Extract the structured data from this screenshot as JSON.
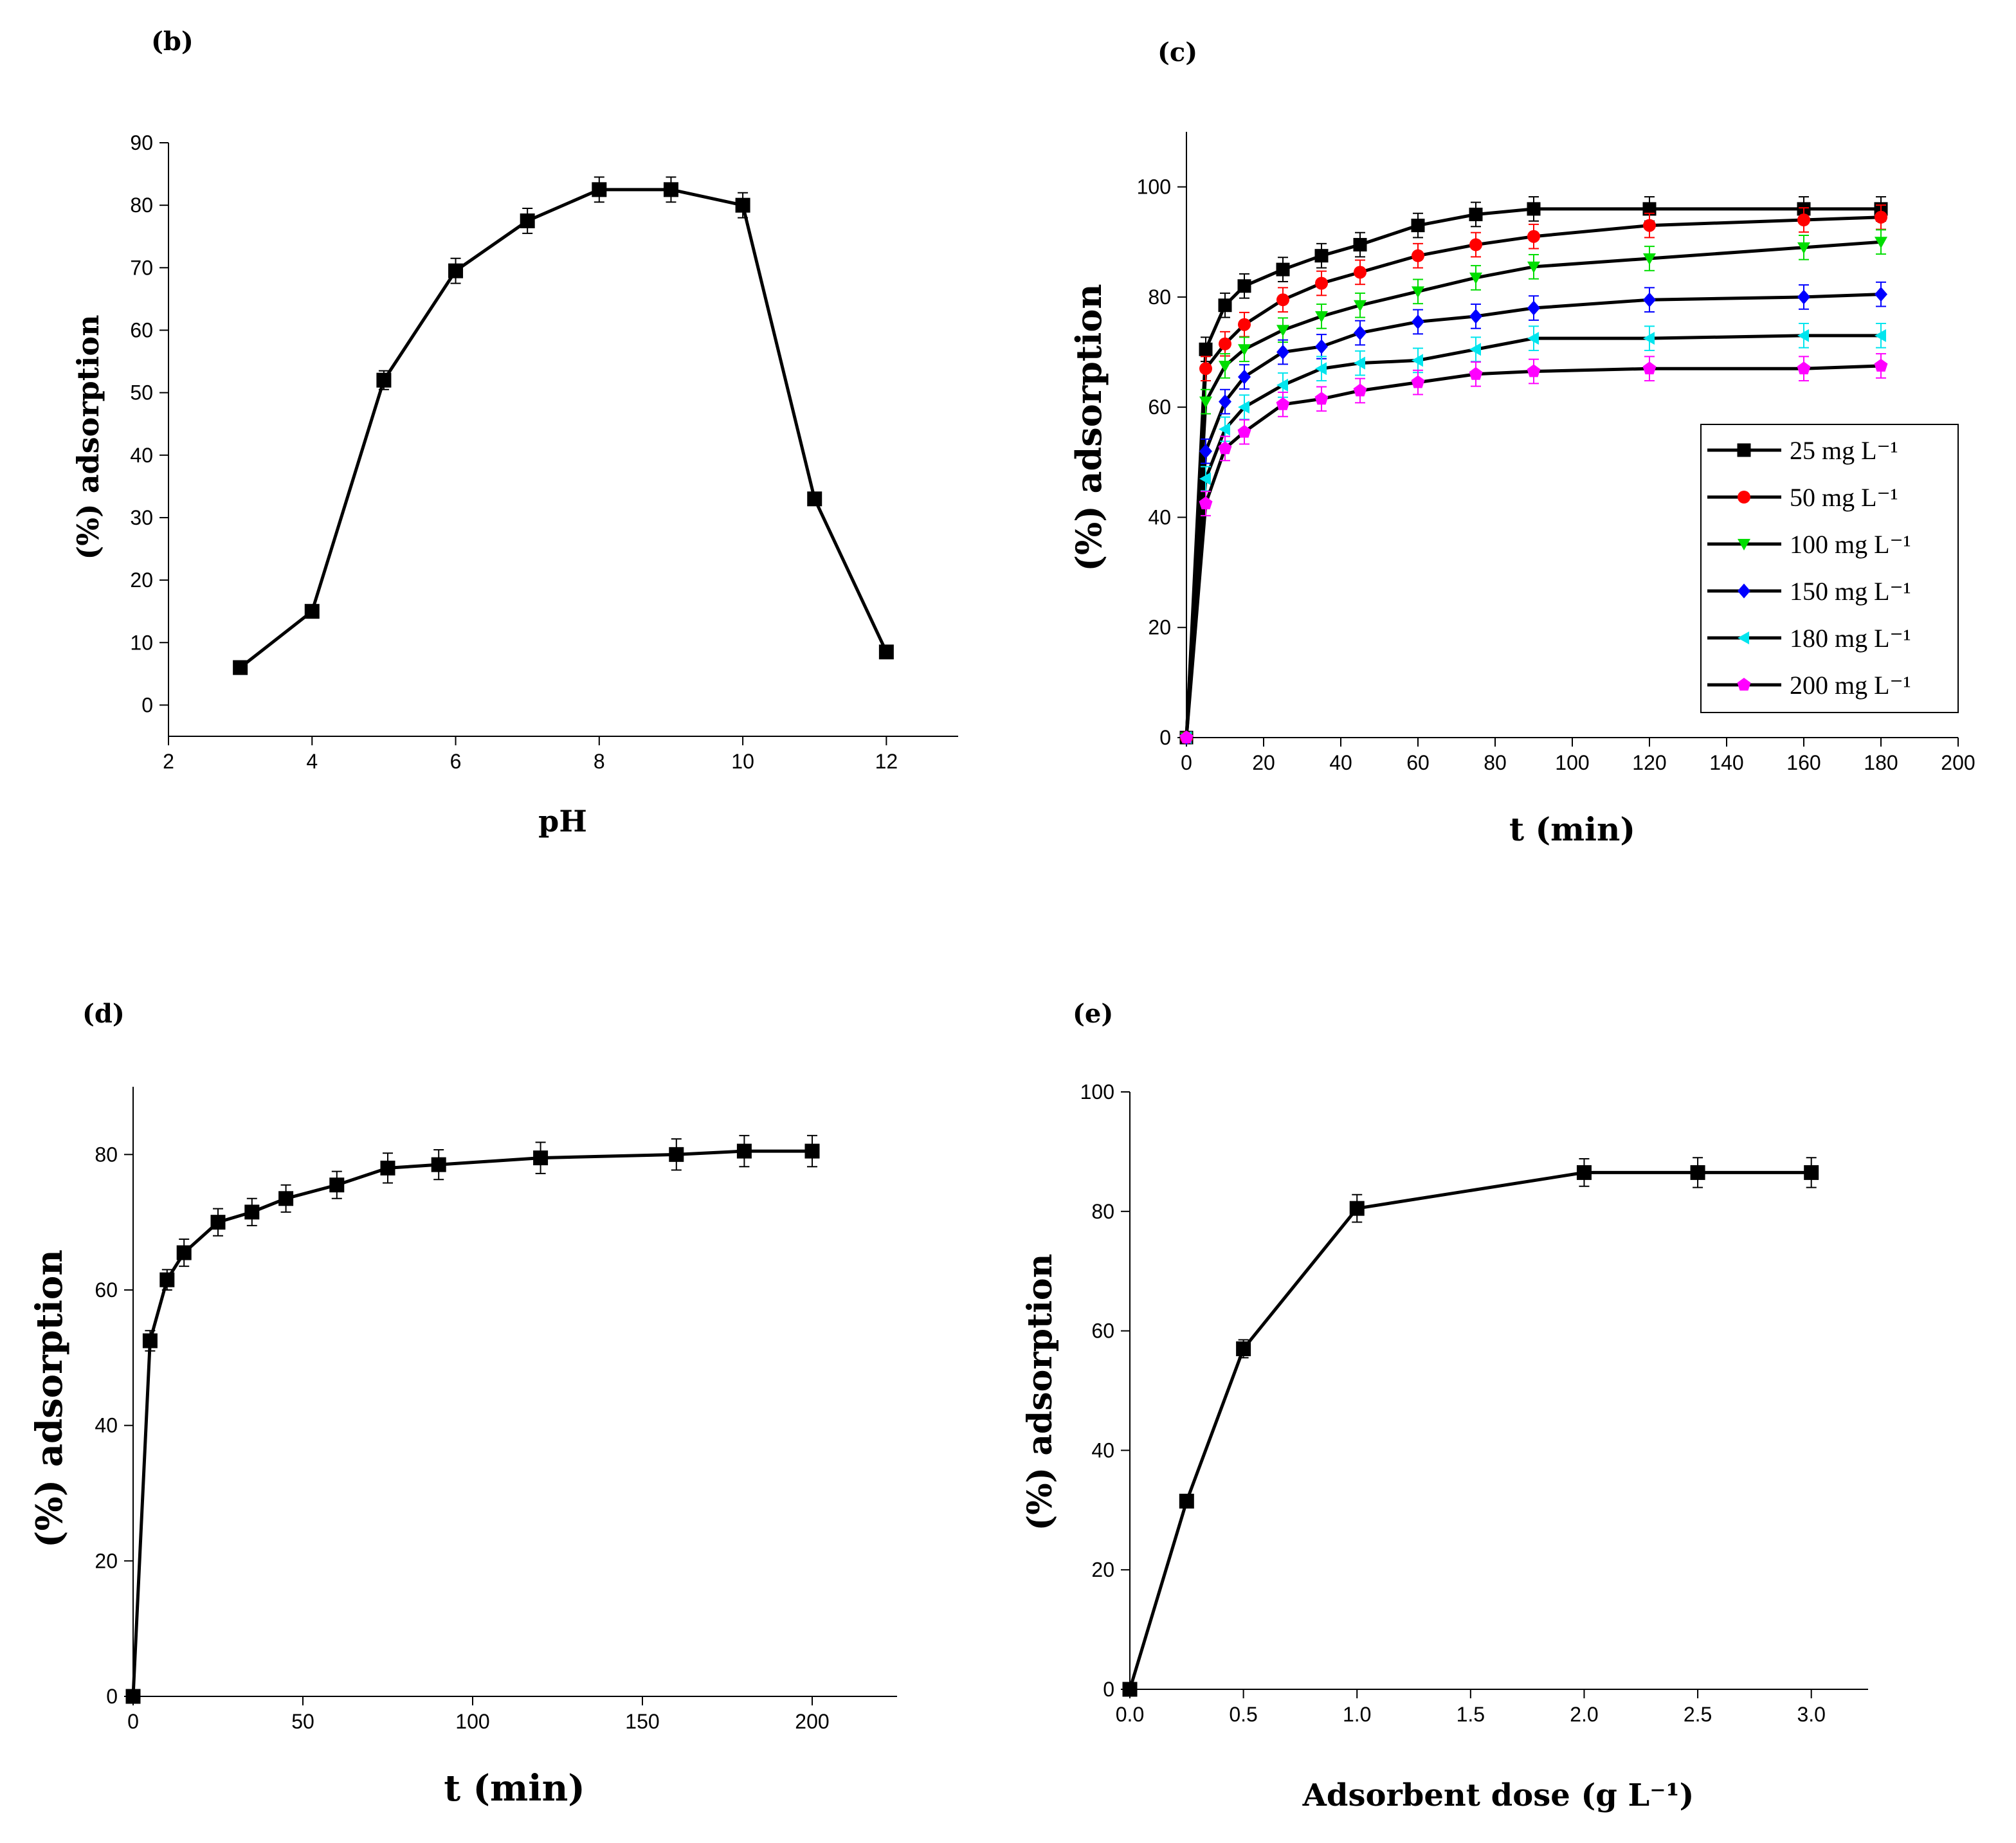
{
  "chart_data": [
    {
      "panel": "(b)",
      "type": "line",
      "xlabel": "pH",
      "ylabel": "(%) adsorption",
      "xlim": [
        2,
        13
      ],
      "ylim": [
        -5,
        90
      ],
      "xticks": [
        2,
        4,
        6,
        8,
        10,
        12
      ],
      "yticks": [
        0,
        10,
        20,
        30,
        40,
        50,
        60,
        70,
        80,
        90
      ],
      "series": [
        {
          "name": "pH",
          "color": "#000000",
          "marker": "square",
          "x": [
            3,
            4,
            5,
            6,
            7,
            8,
            9,
            10,
            11,
            12
          ],
          "y": [
            6,
            15,
            52,
            69.5,
            77.5,
            82.5,
            82.5,
            80,
            33,
            8.5
          ],
          "err": [
            0,
            0,
            1.5,
            2,
            2,
            2,
            2,
            2,
            0,
            0
          ]
        }
      ]
    },
    {
      "panel": "(c)",
      "type": "line",
      "xlabel": "t (min)",
      "ylabel": "(%) adsorption",
      "xlim": [
        0,
        200
      ],
      "ylim": [
        0,
        110
      ],
      "xticks": [
        0,
        20,
        40,
        60,
        80,
        100,
        120,
        140,
        160,
        180,
        200
      ],
      "yticks": [
        0,
        20,
        40,
        60,
        80,
        100
      ],
      "legend": "right",
      "series": [
        {
          "name": "25 mg L⁻¹",
          "color": "#000000",
          "marker": "square",
          "x": [
            0,
            5,
            10,
            15,
            25,
            35,
            45,
            60,
            75,
            90,
            120,
            160,
            180
          ],
          "y": [
            0,
            70.5,
            78.5,
            82,
            85,
            87.5,
            89.5,
            93,
            95,
            96,
            96,
            96,
            96
          ]
        },
        {
          "name": "50 mg L⁻¹",
          "color": "#ff0000",
          "marker": "circle",
          "x": [
            0,
            5,
            10,
            15,
            25,
            35,
            45,
            60,
            75,
            90,
            120,
            160,
            180
          ],
          "y": [
            0,
            67,
            71.5,
            75,
            79.5,
            82.5,
            84.5,
            87.5,
            89.5,
            91,
            93,
            94,
            94.5
          ]
        },
        {
          "name": "100 mg L⁻¹",
          "color": "#00dd00",
          "marker": "triangle-down",
          "x": [
            0,
            5,
            10,
            15,
            25,
            35,
            45,
            60,
            75,
            90,
            120,
            160,
            180
          ],
          "y": [
            0,
            61,
            67.5,
            70.5,
            74,
            76.5,
            78.5,
            81,
            83.5,
            85.5,
            87,
            89,
            90
          ]
        },
        {
          "name": "150 mg L⁻¹",
          "color": "#0000ff",
          "marker": "diamond",
          "x": [
            0,
            5,
            10,
            15,
            25,
            35,
            45,
            60,
            75,
            90,
            120,
            160,
            180
          ],
          "y": [
            0,
            52,
            61,
            65.5,
            70,
            71,
            73.5,
            75.5,
            76.5,
            78,
            79.5,
            80,
            80.5
          ]
        },
        {
          "name": "180 mg L⁻¹",
          "color": "#00e5ee",
          "marker": "triangle-left",
          "x": [
            0,
            5,
            10,
            15,
            25,
            35,
            45,
            60,
            75,
            90,
            120,
            160,
            180
          ],
          "y": [
            0,
            47,
            56,
            60,
            64,
            67,
            68,
            68.5,
            70.5,
            72.5,
            72.5,
            73,
            73
          ]
        },
        {
          "name": "200 mg L⁻¹",
          "color": "#ff00ff",
          "marker": "pentagon",
          "x": [
            0,
            5,
            10,
            15,
            25,
            35,
            45,
            60,
            75,
            90,
            120,
            160,
            180
          ],
          "y": [
            0,
            42.5,
            52.5,
            55.5,
            60.5,
            61.5,
            63,
            64.5,
            66,
            66.5,
            67,
            67,
            67.5
          ]
        }
      ]
    },
    {
      "panel": "(d)",
      "type": "line",
      "xlabel": "t (min)",
      "ylabel": "(%) adsorption",
      "xlim": [
        0,
        225
      ],
      "ylim": [
        0,
        90
      ],
      "xticks": [
        0,
        50,
        100,
        150,
        200
      ],
      "yticks": [
        0,
        20,
        40,
        60,
        80
      ],
      "series": [
        {
          "name": "t",
          "color": "#000000",
          "marker": "square",
          "x": [
            0,
            5,
            10,
            15,
            25,
            35,
            45,
            60,
            75,
            90,
            120,
            160,
            180,
            200
          ],
          "y": [
            0,
            52.5,
            61.5,
            65.5,
            70,
            71.5,
            73.5,
            75.5,
            78,
            78.5,
            79.5,
            80,
            80.5,
            80.5
          ],
          "err": [
            0,
            1.5,
            1.5,
            2,
            2,
            2,
            2,
            2,
            2.2,
            2.2,
            2.3,
            2.3,
            2.3,
            2.3
          ]
        }
      ]
    },
    {
      "panel": "(e)",
      "type": "line",
      "xlabel": "Adsorbent dose (g L⁻¹)",
      "ylabel": "(%) adsorption",
      "xlim": [
        0,
        3.25
      ],
      "ylim": [
        0,
        100
      ],
      "xticks": [
        0.0,
        0.5,
        1.0,
        1.5,
        2.0,
        2.5,
        3.0
      ],
      "yticks": [
        0,
        20,
        40,
        60,
        80,
        100
      ],
      "series": [
        {
          "name": "dose",
          "color": "#000000",
          "marker": "square",
          "x": [
            0,
            0.25,
            0.5,
            1.0,
            2.0,
            2.5,
            3.0
          ],
          "y": [
            0,
            31.5,
            57,
            80.5,
            86.5,
            86.5,
            86.5
          ],
          "err": [
            0,
            0,
            1.5,
            2.3,
            2.3,
            2.5,
            2.5
          ]
        }
      ]
    }
  ]
}
